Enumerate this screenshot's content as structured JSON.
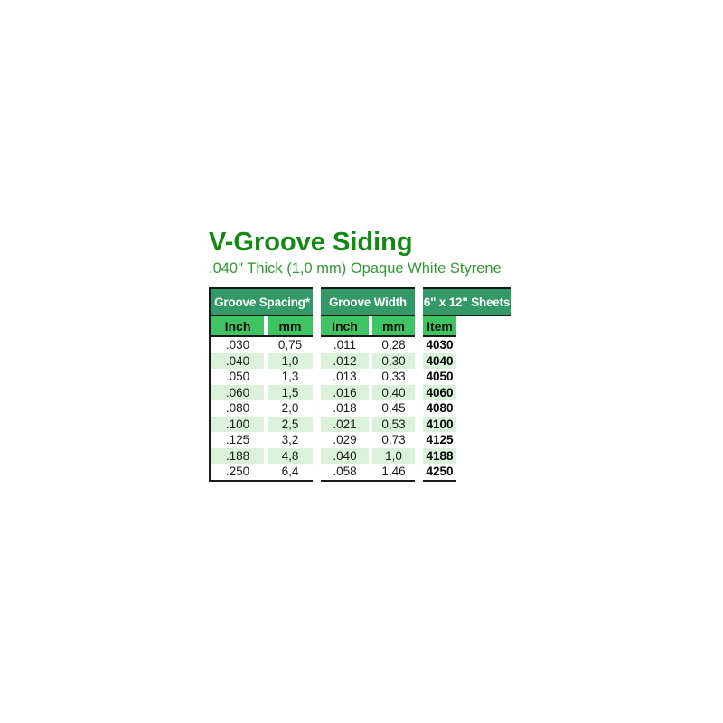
{
  "header": {
    "title": "V-Groove Siding",
    "subtitle": ".040\" Thick (1,0 mm) Opaque White Styrene"
  },
  "table": {
    "groups": [
      {
        "label": "Groove Spacing*",
        "columns": [
          "Inch",
          "mm"
        ]
      },
      {
        "label": "Groove Width",
        "columns": [
          "Inch",
          "mm"
        ]
      },
      {
        "label": "6\" x 12\" Sheets",
        "columns": [
          "Item"
        ]
      }
    ],
    "rows": [
      [
        ".030",
        "0,75",
        ".011",
        "0,28",
        "4030"
      ],
      [
        ".040",
        "1,0",
        ".012",
        "0,30",
        "4040"
      ],
      [
        ".050",
        "1,3",
        ".013",
        "0,33",
        "4050"
      ],
      [
        ".060",
        "1,5",
        ".016",
        "0,40",
        "4060"
      ],
      [
        ".080",
        "2,0",
        ".018",
        "0,45",
        "4080"
      ],
      [
        ".100",
        "2,5",
        ".021",
        "0,53",
        "4100"
      ],
      [
        ".125",
        "3,2",
        ".029",
        "0,73",
        "4125"
      ],
      [
        ".188",
        "4,8",
        ".040",
        "1,0",
        "4188"
      ],
      [
        ".250",
        "6,4",
        ".058",
        "1,46",
        "4250"
      ]
    ]
  },
  "colors": {
    "title_green": "#128a12",
    "subtitle_green": "#2f9b2f",
    "group_header_bg": "#339966",
    "group_header_text": "#ffffff",
    "subheader_bg": "#3fc463",
    "zebra_row_bg": "#d9f2d9",
    "rule_black": "#1a1a1a"
  },
  "chart_data": {
    "type": "table",
    "title": "V-Groove Siding",
    "subtitle": ".040\" Thick (1,0 mm) Opaque White Styrene",
    "column_groups": [
      "Groove Spacing*",
      "Groove Width",
      "6\" x 12\" Sheets"
    ],
    "columns": [
      "Groove Spacing Inch",
      "Groove Spacing mm",
      "Groove Width Inch",
      "Groove Width mm",
      "Item"
    ],
    "rows": [
      [
        ".030",
        "0,75",
        ".011",
        "0,28",
        "4030"
      ],
      [
        ".040",
        "1,0",
        ".012",
        "0,30",
        "4040"
      ],
      [
        ".050",
        "1,3",
        ".013",
        "0,33",
        "4050"
      ],
      [
        ".060",
        "1,5",
        ".016",
        "0,40",
        "4060"
      ],
      [
        ".080",
        "2,0",
        ".018",
        "0,45",
        "4080"
      ],
      [
        ".100",
        "2,5",
        ".021",
        "0,53",
        "4100"
      ],
      [
        ".125",
        "3,2",
        ".029",
        "0,73",
        "4125"
      ],
      [
        ".188",
        "4,8",
        ".040",
        "1,0",
        "4188"
      ],
      [
        ".250",
        "6,4",
        ".058",
        "1,46",
        "4250"
      ]
    ]
  }
}
